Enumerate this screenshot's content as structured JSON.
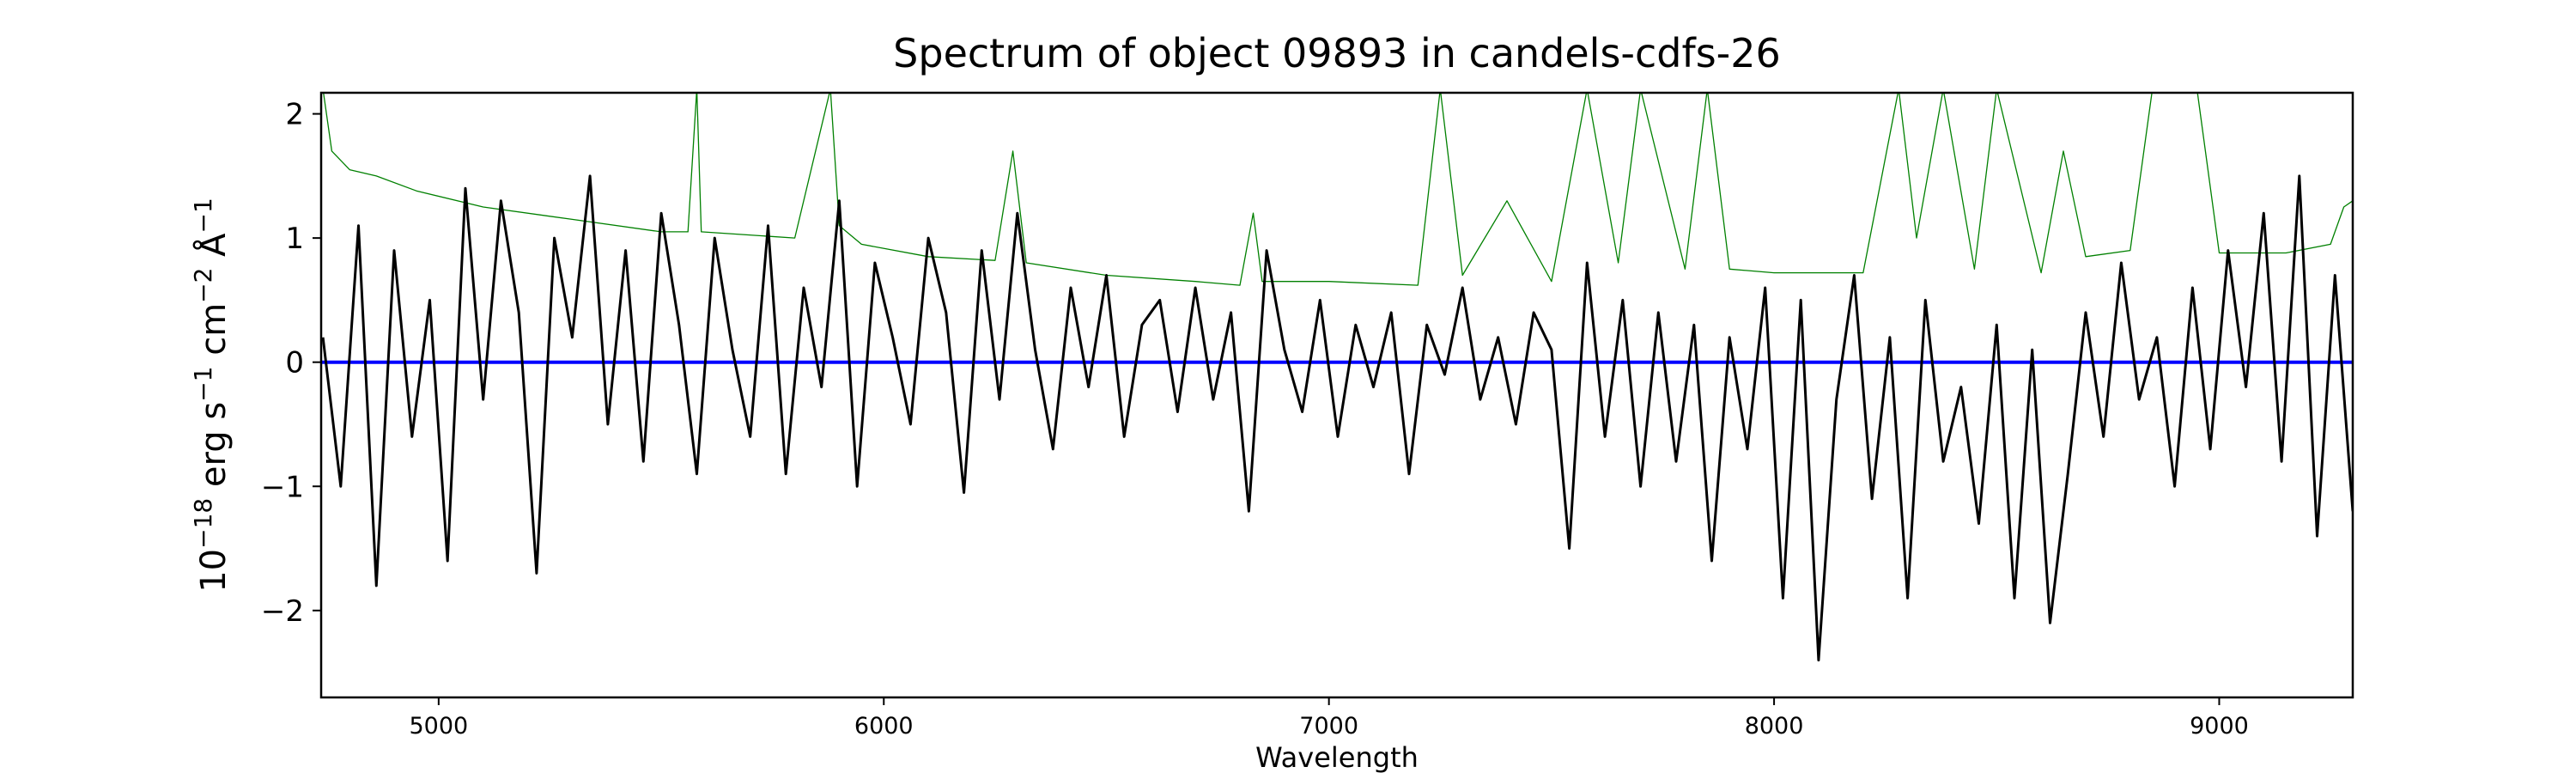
{
  "chart_data": {
    "type": "line",
    "title": "Spectrum of object 09893 in candels-cdfs-26",
    "xlabel": "Wavelength",
    "ylabel": "10^-18 erg s^-1 cm^-2 Å^-1",
    "xlim": [
      4736,
      9300
    ],
    "ylim": [
      -2.7,
      2.17
    ],
    "xticks": [
      5000,
      6000,
      7000,
      8000,
      9000
    ],
    "yticks": [
      -2,
      -1,
      0,
      1,
      2
    ],
    "grid": false,
    "colors": {
      "flux": "#000000",
      "error": "#008000",
      "zero": "#0000ff"
    },
    "series": [
      {
        "key": "flux",
        "x": [
          4740,
          4780,
          4820,
          4860,
          4900,
          4940,
          4980,
          5020,
          5060,
          5100,
          5140,
          5180,
          5220,
          5260,
          5300,
          5340,
          5380,
          5420,
          5460,
          5500,
          5540,
          5580,
          5620,
          5660,
          5700,
          5740,
          5780,
          5820,
          5860,
          5900,
          5940,
          5980,
          6020,
          6060,
          6100,
          6140,
          6180,
          6220,
          6260,
          6300,
          6340,
          6380,
          6420,
          6460,
          6500,
          6540,
          6580,
          6620,
          6660,
          6700,
          6740,
          6780,
          6820,
          6860,
          6900,
          6940,
          6980,
          7020,
          7060,
          7100,
          7140,
          7180,
          7220,
          7260,
          7300,
          7340,
          7380,
          7420,
          7460,
          7500,
          7540,
          7580,
          7620,
          7660,
          7700,
          7740,
          7780,
          7820,
          7860,
          7900,
          7940,
          7980,
          8020,
          8060,
          8100,
          8140,
          8180,
          8220,
          8260,
          8300,
          8340,
          8380,
          8420,
          8460,
          8500,
          8540,
          8580,
          8620,
          8660,
          8700,
          8740,
          8780,
          8820,
          8860,
          8900,
          8940,
          8980,
          9020,
          9060,
          9100,
          9140,
          9180,
          9220,
          9260,
          9300
        ],
        "y": [
          0.2,
          -1.0,
          1.1,
          -1.8,
          0.9,
          -0.6,
          0.5,
          -1.6,
          1.4,
          -0.3,
          1.3,
          0.4,
          -1.7,
          1.0,
          0.2,
          1.5,
          -0.5,
          0.9,
          -0.8,
          1.2,
          0.3,
          -0.9,
          1.0,
          0.1,
          -0.6,
          1.1,
          -0.9,
          0.6,
          -0.2,
          1.3,
          -1.0,
          0.8,
          0.2,
          -0.5,
          1.0,
          0.4,
          -1.05,
          0.9,
          -0.3,
          1.2,
          0.1,
          -0.7,
          0.6,
          -0.2,
          0.7,
          -0.6,
          0.3,
          0.5,
          -0.4,
          0.6,
          -0.3,
          0.4,
          -1.2,
          0.9,
          0.1,
          -0.4,
          0.5,
          -0.6,
          0.3,
          -0.2,
          0.4,
          -0.9,
          0.3,
          -0.1,
          0.6,
          -0.3,
          0.2,
          -0.5,
          0.4,
          0.1,
          -1.5,
          0.8,
          -0.6,
          0.5,
          -1.0,
          0.4,
          -0.8,
          0.3,
          -1.6,
          0.2,
          -0.7,
          0.6,
          -1.9,
          0.5,
          -2.4,
          -0.3,
          0.7,
          -1.1,
          0.2,
          -1.9,
          0.5,
          -0.8,
          -0.2,
          -1.3,
          0.3,
          -1.9,
          0.1,
          -2.1,
          -0.9,
          0.4,
          -0.6,
          0.8,
          -0.3,
          0.2,
          -1.0,
          0.6,
          -0.7,
          0.9,
          -0.2,
          1.2,
          -0.8,
          1.5,
          -1.4,
          0.7,
          -1.2
        ]
      },
      {
        "key": "error",
        "x": [
          4740,
          4760,
          4800,
          4860,
          4950,
          5100,
          5300,
          5500,
          5560,
          5580,
          5590,
          5800,
          5880,
          5900,
          5950,
          6100,
          6250,
          6290,
          6320,
          6500,
          6700,
          6800,
          6830,
          6850,
          7000,
          7200,
          7250,
          7300,
          7400,
          7500,
          7580,
          7650,
          7700,
          7800,
          7850,
          7900,
          8000,
          8200,
          8280,
          8320,
          8380,
          8450,
          8500,
          8600,
          8650,
          8700,
          8800,
          8850,
          8950,
          9000,
          9150,
          9250,
          9280,
          9300
        ],
        "y": [
          2.2,
          1.7,
          1.55,
          1.5,
          1.38,
          1.25,
          1.15,
          1.05,
          1.05,
          2.2,
          1.05,
          1.0,
          2.2,
          1.1,
          0.95,
          0.85,
          0.82,
          1.7,
          0.8,
          0.7,
          0.65,
          0.62,
          1.2,
          0.65,
          0.65,
          0.62,
          2.2,
          0.7,
          1.3,
          0.65,
          2.2,
          0.8,
          2.2,
          0.75,
          2.2,
          0.75,
          0.72,
          0.72,
          2.2,
          1.0,
          2.2,
          0.75,
          2.2,
          0.72,
          1.7,
          0.85,
          0.9,
          2.2,
          2.2,
          0.88,
          0.88,
          0.95,
          1.25,
          1.3
        ]
      },
      {
        "key": "zero",
        "x": [
          4736,
          9300
        ],
        "y": [
          0,
          0
        ]
      }
    ]
  }
}
